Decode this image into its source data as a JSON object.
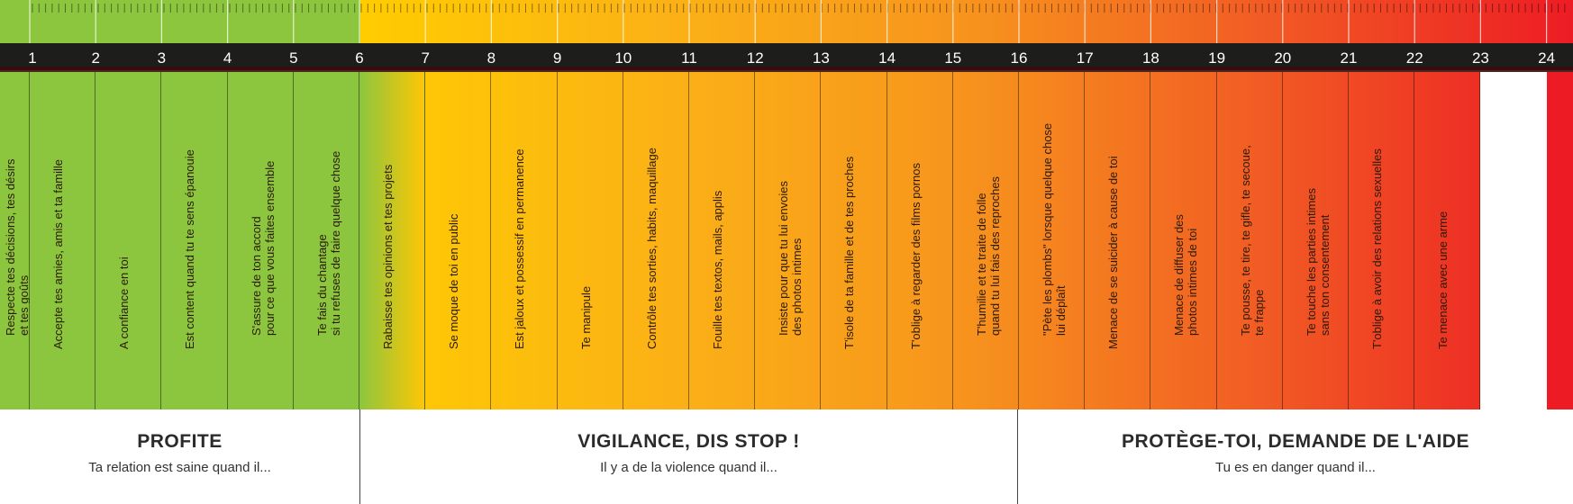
{
  "numbers": [
    "1",
    "2",
    "3",
    "4",
    "5",
    "6",
    "7",
    "8",
    "9",
    "10",
    "11",
    "12",
    "13",
    "14",
    "15",
    "16",
    "17",
    "18",
    "19",
    "20",
    "21",
    "22",
    "23",
    "24"
  ],
  "colors": {
    "green": "#8cc63f",
    "band_dark": "#1d1d1b",
    "gradient_stops": [
      "#ffcc00",
      "#fbb216",
      "#f7941d",
      "#f15a24",
      "#ed1c24"
    ]
  },
  "columns": [
    {
      "text": "Respecte tes décisions, tes désirs\net tes goûts"
    },
    {
      "text": "Accepte tes amies, amis et ta famille"
    },
    {
      "text": "A confiance en toi"
    },
    {
      "text": "Est content quand tu te sens épanouie"
    },
    {
      "text": "S'assure de ton accord\npour ce que vous faites ensemble"
    },
    {
      "text": "Te fais du chantage\nsi tu refuses de faire quelque chose"
    },
    {
      "text": "Rabaisse tes opinions et tes projets"
    },
    {
      "text": "Se moque de toi en public"
    },
    {
      "text": "Est jaloux et possessif en permanence"
    },
    {
      "text": "Te manipule"
    },
    {
      "text": "Contrôle tes sorties, habits, maquillage"
    },
    {
      "text": "Fouille tes textos, mails, applis"
    },
    {
      "text": "Insiste pour que tu lui envoies\ndes photos intimes"
    },
    {
      "text": "T'isole de ta famille et de tes proches"
    },
    {
      "text": "T'oblige à regarder des films pornos"
    },
    {
      "text": "T'humilie et te traite de folle\nquand tu lui fais des reproches"
    },
    {
      "text": "\"Pète les plombs\" lorsque quelque chose\nlui déplaît"
    },
    {
      "text": "Menace de se suicider à cause de toi"
    },
    {
      "text": "Menace de diffuser des\nphotos intimes de toi"
    },
    {
      "text": "Te pousse, te tire, te gifle, te secoue,\nte frappe"
    },
    {
      "text": "Te touche les parties intimes\nsans ton consentement"
    },
    {
      "text": "T'oblige à avoir des relations sexuelles"
    },
    {
      "text": "Te menace avec une arme"
    }
  ],
  "sections": [
    {
      "title": "PROFITE",
      "subtitle": "Ta relation est saine quand il..."
    },
    {
      "title": "VIGILANCE, DIS STOP !",
      "subtitle": "Il y a de la violence quand il..."
    },
    {
      "title": "PROTÈGE-TOI, DEMANDE DE L'AIDE",
      "subtitle": "Tu es en danger quand il..."
    }
  ]
}
